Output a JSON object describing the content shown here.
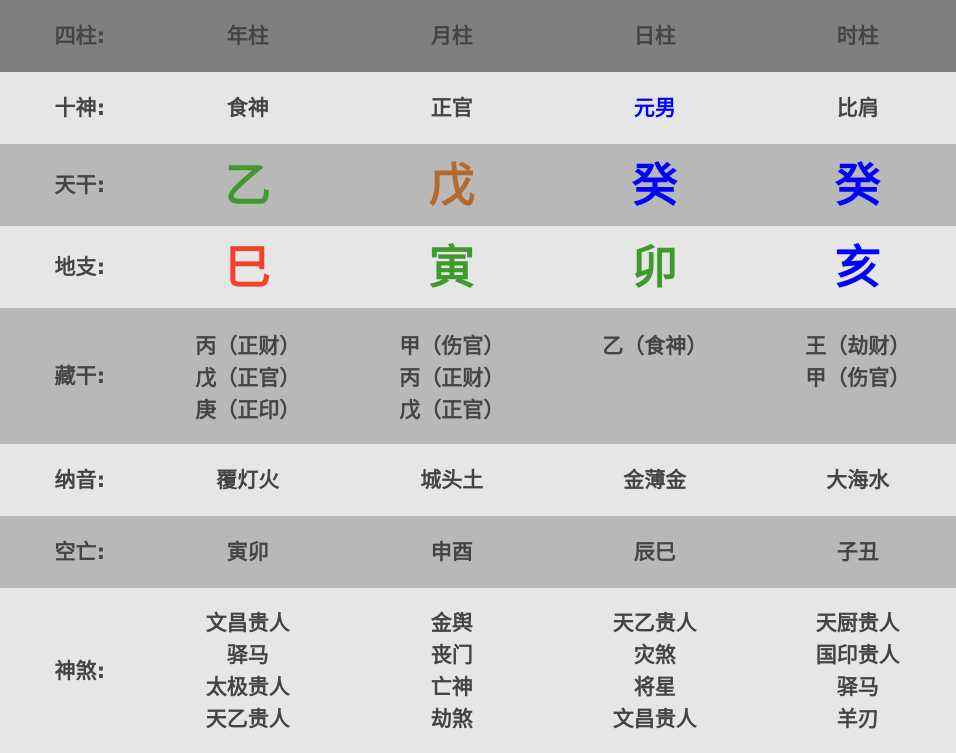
{
  "header": {
    "label": "四柱:",
    "columns": [
      "年柱",
      "月柱",
      "日柱",
      "时柱"
    ]
  },
  "rows": {
    "shishen": {
      "label": "十神:",
      "values": [
        "食神",
        "正官",
        "元男",
        "比肩"
      ],
      "colors": [
        "#444444",
        "#444444",
        "#0000ff",
        "#444444"
      ]
    },
    "tiangan": {
      "label": "天干:",
      "values": [
        "乙",
        "戊",
        "癸",
        "癸"
      ],
      "colors": [
        "#3f9a2c",
        "#b5692a",
        "#0000ff",
        "#0000ff"
      ]
    },
    "dizhi": {
      "label": "地支:",
      "values": [
        "巳",
        "寅",
        "卯",
        "亥"
      ],
      "colors": [
        "#f2402a",
        "#3f9a2c",
        "#3f9a2c",
        "#0000ff"
      ]
    },
    "canggan": {
      "label": "藏干:",
      "values": [
        [
          "丙（正财）",
          "戊（正官）",
          "庚（正印）"
        ],
        [
          "甲（伤官）",
          "丙（正财）",
          "戊（正官）"
        ],
        [
          "乙（食神）"
        ],
        [
          "王（劫财）",
          "甲（伤官）"
        ]
      ]
    },
    "nayin": {
      "label": "纳音:",
      "values": [
        "覆灯火",
        "城头土",
        "金薄金",
        "大海水"
      ]
    },
    "kongwang": {
      "label": "空亡:",
      "values": [
        "寅卯",
        "申酉",
        "辰巳",
        "子丑"
      ]
    },
    "shensha": {
      "label": "神煞:",
      "values": [
        [
          "文昌贵人",
          "驿马",
          "太极贵人",
          "天乙贵人"
        ],
        [
          "金舆",
          "丧门",
          "亡神",
          "劫煞"
        ],
        [
          "天乙贵人",
          "灾煞",
          "将星",
          "文昌贵人"
        ],
        [
          "天厨贵人",
          "国印贵人",
          "驿马",
          "羊刃"
        ]
      ]
    }
  }
}
